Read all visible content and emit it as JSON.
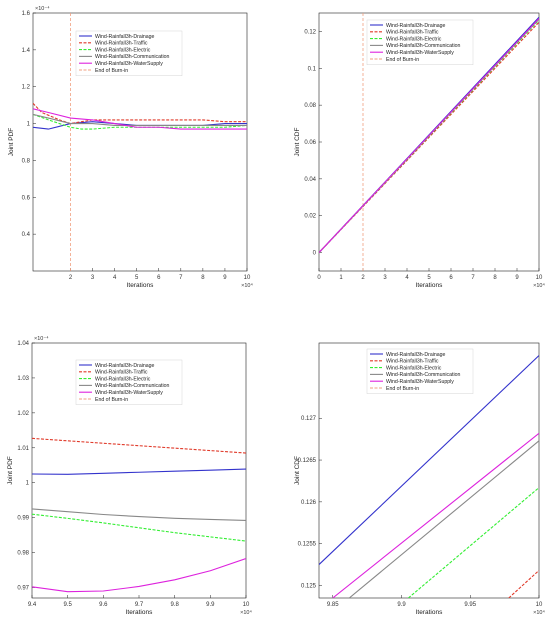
{
  "colors": {
    "drainage": "#3333cc",
    "traffic": "#e03a2a",
    "electric": "#33ee33",
    "communication": "#888888",
    "watersupply": "#dd22dd",
    "burnin": "#f0a080"
  },
  "chart_data": [
    {
      "id": "p1",
      "type": "line",
      "ylabel": "Joint PDF",
      "xlabel": "Iterations",
      "xlim": [
        0.3,
        10
      ],
      "ylim": [
        0.2,
        1.6
      ],
      "xticks": [
        2,
        3,
        4,
        5,
        6,
        7,
        8,
        9,
        10
      ],
      "yticks": [
        0.4,
        0.6,
        0.8,
        1,
        1.2,
        1.4,
        1.6
      ],
      "xexp": "×10⁴",
      "yexp": "×10⁻⁴",
      "legend_pos": "upper-center",
      "burn_in_x": 2,
      "series": [
        {
          "key": "drainage",
          "name": "Wind-Rainfall3h-Drainage",
          "style": "solid",
          "x": [
            0.3,
            1,
            2,
            3,
            4,
            5,
            6,
            7,
            8,
            9,
            10
          ],
          "y": [
            0.98,
            0.97,
            1.0,
            1.01,
            1.0,
            0.99,
            0.99,
            0.99,
            0.99,
            1.0,
            1.0
          ]
        },
        {
          "key": "traffic",
          "name": "Wind-Rainfall3h-Traffic",
          "style": "dash",
          "x": [
            0.3,
            0.7,
            1.5,
            2,
            3,
            4,
            5,
            6,
            7,
            8,
            9,
            10
          ],
          "y": [
            1.11,
            1.06,
            1.02,
            1.0,
            1.02,
            1.02,
            1.02,
            1.02,
            1.02,
            1.02,
            1.01,
            1.01
          ]
        },
        {
          "key": "electric",
          "name": "Wind-Rainfall3h-Electric",
          "style": "dash",
          "x": [
            0.3,
            1,
            2,
            2.5,
            3,
            4,
            5,
            6,
            7,
            8,
            9,
            10
          ],
          "y": [
            1.05,
            1.02,
            0.98,
            0.97,
            0.97,
            0.98,
            0.98,
            0.98,
            0.98,
            0.98,
            0.98,
            0.99
          ]
        },
        {
          "key": "communication",
          "name": "Wind-Rainfall3h-Communication",
          "style": "solid",
          "x": [
            0.3,
            1,
            2,
            3,
            4,
            5,
            6,
            7,
            8,
            9,
            10
          ],
          "y": [
            1.05,
            1.03,
            1.0,
            1.0,
            0.99,
            0.99,
            0.99,
            0.99,
            0.99,
            0.99,
            0.99
          ]
        },
        {
          "key": "watersupply",
          "name": "Wind-Rainfall3h-WaterSupply",
          "style": "solid",
          "x": [
            0.3,
            1,
            2,
            3,
            4,
            5,
            6,
            7,
            8,
            9,
            10
          ],
          "y": [
            1.08,
            1.06,
            1.03,
            1.02,
            1.0,
            0.98,
            0.98,
            0.97,
            0.97,
            0.97,
            0.97
          ]
        },
        {
          "key": "burnin",
          "name": "End of Burn-in",
          "style": "dash",
          "legend_only": true
        }
      ]
    },
    {
      "id": "p2",
      "type": "line",
      "ylabel": "Joint CDF",
      "xlabel": "Iterations",
      "xlim": [
        0,
        10
      ],
      "ylim": [
        -0.01,
        0.13
      ],
      "xticks": [
        0,
        1,
        2,
        3,
        4,
        5,
        6,
        7,
        8,
        9,
        10
      ],
      "yticks": [
        0,
        0.02,
        0.04,
        0.06,
        0.08,
        0.1,
        0.12
      ],
      "xexp": "×10⁴",
      "yexp": "",
      "legend_pos": "top-left",
      "burn_in_x": 2,
      "series": [
        {
          "key": "drainage",
          "name": "Wind-Rainfall3h-Drainage",
          "style": "solid",
          "x": [
            0,
            10
          ],
          "y": [
            0,
            0.1277
          ]
        },
        {
          "key": "traffic",
          "name": "Wind-Rainfall3h-Traffic",
          "style": "dash",
          "x": [
            0,
            10
          ],
          "y": [
            0,
            0.125
          ]
        },
        {
          "key": "electric",
          "name": "Wind-Rainfall3h-Electric",
          "style": "dash",
          "x": [
            0,
            10
          ],
          "y": [
            0,
            0.1262
          ]
        },
        {
          "key": "communication",
          "name": "Wind-Rainfall3h-Communication",
          "style": "solid",
          "x": [
            0,
            10
          ],
          "y": [
            0,
            0.1268
          ]
        },
        {
          "key": "watersupply",
          "name": "Wind-Rainfall3h-WaterSupply",
          "style": "solid",
          "x": [
            0,
            10
          ],
          "y": [
            0,
            0.127
          ]
        },
        {
          "key": "burnin",
          "name": "End of Burn-in",
          "style": "dash",
          "legend_only": true
        }
      ]
    },
    {
      "id": "p3",
      "type": "line",
      "ylabel": "Joint PDF",
      "xlabel": "Iterations",
      "xlim": [
        9.4,
        10
      ],
      "ylim": [
        0.967,
        1.04
      ],
      "xticks": [
        9.4,
        9.5,
        9.6,
        9.7,
        9.8,
        9.9,
        10
      ],
      "yticks": [
        0.97,
        0.98,
        0.99,
        1,
        1.01,
        1.02,
        1.03,
        1.04
      ],
      "xexp": "×10⁴",
      "yexp": "×10⁻⁴",
      "legend_pos": "upper-center",
      "burn_in_x": null,
      "series": [
        {
          "key": "drainage",
          "name": "Wind-Rainfall3h-Drainage",
          "style": "solid",
          "x": [
            9.4,
            9.5,
            9.6,
            9.7,
            9.8,
            9.9,
            10
          ],
          "y": [
            1.0025,
            1.0024,
            1.0027,
            1.003,
            1.0033,
            1.0036,
            1.0039
          ]
        },
        {
          "key": "traffic",
          "name": "Wind-Rainfall3h-Traffic",
          "style": "dash",
          "x": [
            9.4,
            9.5,
            9.6,
            9.7,
            9.8,
            9.9,
            10
          ],
          "y": [
            1.0127,
            1.012,
            1.0113,
            1.0106,
            1.0099,
            1.0092,
            1.0085
          ]
        },
        {
          "key": "electric",
          "name": "Wind-Rainfall3h-Electric",
          "style": "dash",
          "x": [
            9.4,
            9.5,
            9.6,
            9.7,
            9.8,
            9.9,
            10
          ],
          "y": [
            0.991,
            0.9898,
            0.9885,
            0.9871,
            0.9857,
            0.9845,
            0.9833
          ]
        },
        {
          "key": "communication",
          "name": "Wind-Rainfall3h-Communication",
          "style": "solid",
          "x": [
            9.4,
            9.5,
            9.6,
            9.7,
            9.8,
            9.9,
            10
          ],
          "y": [
            0.9925,
            0.9917,
            0.9909,
            0.9903,
            0.9898,
            0.9895,
            0.9892
          ]
        },
        {
          "key": "watersupply",
          "name": "Wind-Rainfall3h-WaterSupply",
          "style": "solid",
          "x": [
            9.4,
            9.5,
            9.6,
            9.7,
            9.8,
            9.9,
            10
          ],
          "y": [
            0.9702,
            0.9688,
            0.969,
            0.9703,
            0.9722,
            0.9748,
            0.9783
          ]
        },
        {
          "key": "burnin",
          "name": "End of Burn-in",
          "style": "dash",
          "legend_only": true
        }
      ]
    },
    {
      "id": "p4",
      "type": "line",
      "ylabel": "Joint CDF",
      "xlabel": "Iterations",
      "xlim": [
        9.84,
        10
      ],
      "ylim": [
        0.12485,
        0.1279
      ],
      "xticks": [
        9.85,
        9.9,
        9.95,
        10
      ],
      "yticks": [
        0.125,
        0.1255,
        0.126,
        0.1265,
        0.127
      ],
      "xexp": "×10⁴",
      "yexp": "",
      "legend_pos": "top-left",
      "burn_in_x": null,
      "series": [
        {
          "key": "drainage",
          "name": "Wind-Rainfall3h-Drainage",
          "style": "solid",
          "x": [
            9.84,
            10
          ],
          "y": [
            0.12525,
            0.12775
          ]
        },
        {
          "key": "traffic",
          "name": "Wind-Rainfall3h-Traffic",
          "style": "dash",
          "x": [
            9.978,
            10
          ],
          "y": [
            0.12485,
            0.12518
          ]
        },
        {
          "key": "electric",
          "name": "Wind-Rainfall3h-Electric",
          "style": "dash",
          "x": [
            9.905,
            10
          ],
          "y": [
            0.12485,
            0.12617
          ]
        },
        {
          "key": "communication",
          "name": "Wind-Rainfall3h-Communication",
          "style": "solid",
          "x": [
            9.862,
            10
          ],
          "y": [
            0.12485,
            0.12673
          ]
        },
        {
          "key": "watersupply",
          "name": "Wind-Rainfall3h-WaterSupply",
          "style": "solid",
          "x": [
            9.85,
            10
          ],
          "y": [
            0.12485,
            0.12682
          ]
        },
        {
          "key": "burnin",
          "name": "End of Burn-in",
          "style": "dash",
          "legend_only": true
        }
      ]
    }
  ]
}
